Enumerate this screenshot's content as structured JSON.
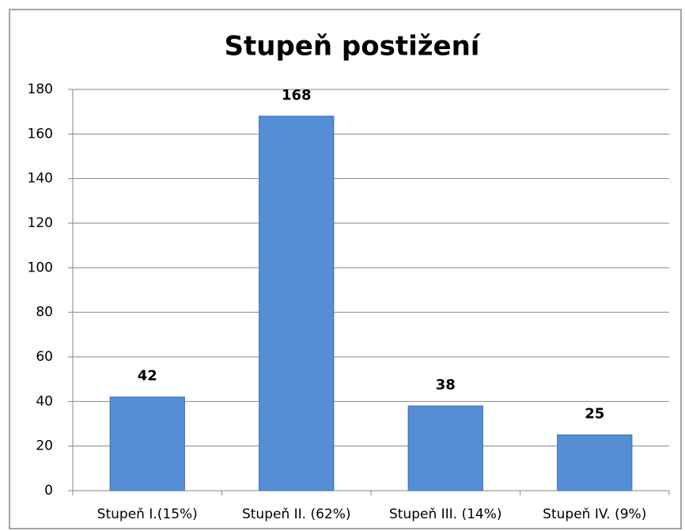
{
  "chart_data": {
    "type": "bar",
    "title": "Stupeň postižení",
    "categories": [
      "Stupeň I.(15%)",
      "Stupeň II. (62%)",
      "Stupeň III. (14%)",
      "Stupeň IV. (9%)"
    ],
    "values": [
      42,
      168,
      38,
      25
    ],
    "color": "#558ed5",
    "ylim": [
      0,
      180
    ],
    "yticks": [
      0,
      20,
      40,
      60,
      80,
      100,
      120,
      140,
      160,
      180
    ],
    "grid": true
  }
}
